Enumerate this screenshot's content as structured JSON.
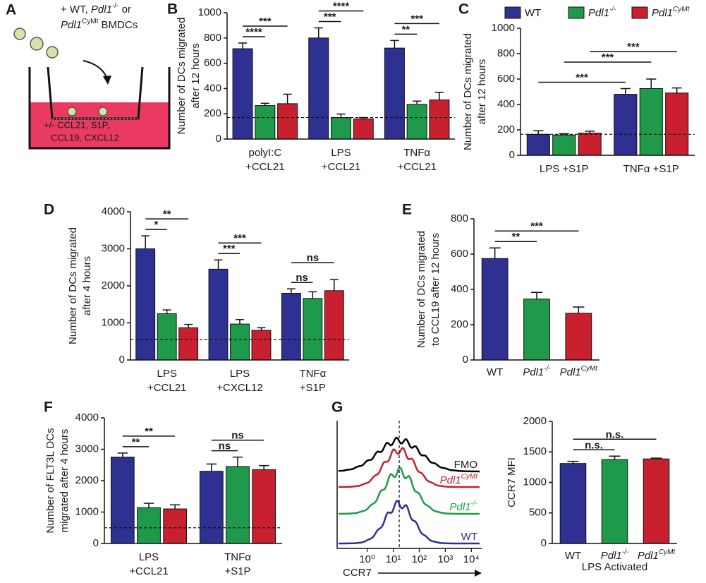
{
  "diagram": {
    "label": "A",
    "top_text": [
      [
        "+ WT, ",
        "Pdl1",
        "-/-",
        " or"
      ],
      [
        "Pdl1",
        "CyMt",
        " BMDCs"
      ]
    ],
    "well_text": [
      "+/- CCL21, S1P,",
      "CCL19, CXCL12"
    ]
  },
  "chart_data": [
    {
      "type": "bar",
      "label": "B",
      "y_label": [
        "Number of DCs migrated",
        "after 12 hours"
      ],
      "categories": [
        [
          "polyI:C",
          "+CCL21"
        ],
        [
          "LPS",
          "+CCL21"
        ],
        [
          "TNFα",
          "+CCL21"
        ]
      ],
      "series": [
        {
          "color": "#2e3192",
          "values": [
            715,
            800,
            720
          ],
          "errors": [
            45,
            80,
            60
          ]
        },
        {
          "color": "#1f9a4a",
          "values": [
            265,
            170,
            275
          ],
          "errors": [
            18,
            28,
            25
          ]
        },
        {
          "color": "#c8202f",
          "values": [
            280,
            160,
            310
          ],
          "errors": [
            75,
            10,
            60
          ]
        }
      ],
      "ylim": [
        0,
        1000
      ],
      "yticks": [
        0,
        200,
        400,
        600,
        800,
        1000
      ],
      "reference_line": 170,
      "annotations": [
        {
          "text": "****",
          "from": [
            0,
            0
          ],
          "to": [
            0,
            1
          ]
        },
        {
          "text": "***",
          "from": [
            0,
            0
          ],
          "to": [
            0,
            2
          ]
        },
        {
          "text": "***",
          "from": [
            1,
            0
          ],
          "to": [
            1,
            1
          ]
        },
        {
          "text": "****",
          "from": [
            1,
            0
          ],
          "to": [
            1,
            2
          ]
        },
        {
          "text": "**",
          "from": [
            2,
            0
          ],
          "to": [
            2,
            1
          ]
        },
        {
          "text": "***",
          "from": [
            2,
            0
          ],
          "to": [
            2,
            2
          ]
        }
      ]
    },
    {
      "type": "bar",
      "label": "C",
      "y_label": [
        "Number of DCs migrated",
        "after 12 hours"
      ],
      "legend": "top",
      "categories": [
        [
          "LPS +S1P"
        ],
        [
          "TNFα +S1P"
        ]
      ],
      "series": [
        {
          "name": "WT",
          "color": "#2e3192",
          "values": [
            165,
            480
          ],
          "errors": [
            28,
            45
          ]
        },
        {
          "name": "Pdl1",
          "name_sup": "-/-",
          "color": "#1f9a4a",
          "values": [
            160,
            525
          ],
          "errors": [
            10,
            75
          ]
        },
        {
          "name": "Pdl1",
          "name_sup": "CyMt",
          "color": "#c8202f",
          "values": [
            175,
            490
          ],
          "errors": [
            15,
            40
          ]
        }
      ],
      "ylim": [
        0,
        1000
      ],
      "yticks": [
        0,
        200,
        400,
        600,
        800,
        1000
      ],
      "reference_line": 165,
      "annotations": [
        {
          "text": "***",
          "from": [
            0,
            0
          ],
          "to": [
            1,
            0
          ]
        },
        {
          "text": "***",
          "from": [
            0,
            1
          ],
          "to": [
            1,
            1
          ]
        },
        {
          "text": "***",
          "from": [
            0,
            2
          ],
          "to": [
            1,
            2
          ]
        }
      ]
    },
    {
      "type": "bar",
      "label": "D",
      "y_label": [
        "Number of DCs migrated",
        "after 4 hours"
      ],
      "categories": [
        [
          "LPS",
          "+CCL21"
        ],
        [
          "LPS",
          "+CXCL12"
        ],
        [
          "TNFα",
          "+S1P"
        ]
      ],
      "series": [
        {
          "color": "#2e3192",
          "values": [
            3000,
            2450,
            1800
          ],
          "errors": [
            350,
            250,
            120
          ]
        },
        {
          "color": "#1f9a4a",
          "values": [
            1250,
            970,
            1660
          ],
          "errors": [
            100,
            120,
            180
          ]
        },
        {
          "color": "#c8202f",
          "values": [
            870,
            800,
            1870
          ],
          "errors": [
            90,
            70,
            300
          ]
        }
      ],
      "ylim": [
        0,
        4000
      ],
      "yticks": [
        0,
        1000,
        2000,
        3000,
        4000
      ],
      "reference_line": 550,
      "annotations": [
        {
          "text": "*",
          "from": [
            0,
            0
          ],
          "to": [
            0,
            1
          ]
        },
        {
          "text": "**",
          "from": [
            0,
            0
          ],
          "to": [
            0,
            2
          ]
        },
        {
          "text": "***",
          "from": [
            1,
            0
          ],
          "to": [
            1,
            1
          ]
        },
        {
          "text": "***",
          "from": [
            1,
            0
          ],
          "to": [
            1,
            2
          ]
        },
        {
          "text": "ns",
          "from": [
            2,
            0
          ],
          "to": [
            2,
            1
          ]
        },
        {
          "text": "ns",
          "from": [
            2,
            0
          ],
          "to": [
            2,
            2
          ]
        }
      ]
    },
    {
      "type": "bar",
      "label": "E",
      "y_label": [
        "Number of DCs migrated",
        "to CCL19 after 12 hours"
      ],
      "categories": [
        {
          "text": "WT"
        },
        {
          "text": "Pdl1",
          "sup": "-/-"
        },
        {
          "text": "Pdl1",
          "sup": "CyMt"
        }
      ],
      "values": [
        575,
        345,
        265
      ],
      "errors": [
        60,
        38,
        35
      ],
      "colors": [
        "#2e3192",
        "#1f9a4a",
        "#c8202f"
      ],
      "ylim": [
        0,
        800
      ],
      "yticks": [
        0,
        200,
        400,
        600,
        800
      ],
      "annotations": [
        {
          "text": "**",
          "from": 0,
          "to": 1
        },
        {
          "text": "***",
          "from": 0,
          "to": 2
        }
      ]
    },
    {
      "type": "bar",
      "label": "F",
      "y_label": [
        "Number of FLT3L DCs",
        "migrated after 4 hours"
      ],
      "categories": [
        [
          "LPS",
          "+CCL21"
        ],
        [
          "TNFα",
          "+S1P"
        ]
      ],
      "series": [
        {
          "color": "#2e3192",
          "values": [
            2750,
            2300
          ],
          "errors": [
            130,
            230
          ]
        },
        {
          "color": "#1f9a4a",
          "values": [
            1140,
            2450
          ],
          "errors": [
            140,
            300
          ]
        },
        {
          "color": "#c8202f",
          "values": [
            1100,
            2350
          ],
          "errors": [
            130,
            130
          ]
        }
      ],
      "ylim": [
        0,
        4000
      ],
      "yticks": [
        0,
        1000,
        2000,
        3000,
        4000
      ],
      "reference_line": 500,
      "annotations": [
        {
          "text": "**",
          "from": [
            0,
            0
          ],
          "to": [
            0,
            1
          ]
        },
        {
          "text": "**",
          "from": [
            0,
            0
          ],
          "to": [
            0,
            2
          ]
        },
        {
          "text": "ns",
          "from": [
            1,
            0
          ],
          "to": [
            1,
            1
          ]
        },
        {
          "text": "ns",
          "from": [
            1,
            0
          ],
          "to": [
            1,
            2
          ]
        }
      ]
    },
    {
      "type": "density",
      "label": "G",
      "x_label": "CCR7",
      "log_x": true,
      "xlim": [
        0.07,
        25000
      ],
      "xticks": [
        {
          "value": 1,
          "label": "10⁰"
        },
        {
          "value": 10,
          "label": "10¹"
        },
        {
          "value": 100,
          "label": "10²"
        },
        {
          "value": 1000,
          "label": "10³"
        },
        {
          "value": 10000,
          "label": "10⁴"
        }
      ],
      "reference_x": 17,
      "series": [
        {
          "name": "FMO",
          "color": "#000000"
        },
        {
          "name": "Pdl1",
          "name_sup": "CyMt",
          "color": "#c8202f"
        },
        {
          "name": "Pdl1",
          "name_sup": "-/-",
          "color": "#1f9a4a"
        },
        {
          "name": "WT",
          "color": "#2e3192"
        }
      ]
    },
    {
      "type": "bar",
      "y_label": [
        "CCR7 MFI"
      ],
      "x_label": "LPS Activated",
      "categories": [
        {
          "text": "WT"
        },
        {
          "text": "Pdl1",
          "sup": "-/-"
        },
        {
          "text": "Pdl1",
          "sup": "CyMt"
        }
      ],
      "values": [
        1310,
        1375,
        1385
      ],
      "errors": [
        35,
        55,
        12
      ],
      "colors": [
        "#2e3192",
        "#1f9a4a",
        "#c8202f"
      ],
      "ylim": [
        0,
        2000
      ],
      "yticks": [
        0,
        500,
        1000,
        1500,
        2000
      ],
      "annotations": [
        {
          "text": "n.s.",
          "from": 0,
          "to": 1
        },
        {
          "text": "n.s.",
          "from": 0,
          "to": 2
        }
      ]
    }
  ]
}
